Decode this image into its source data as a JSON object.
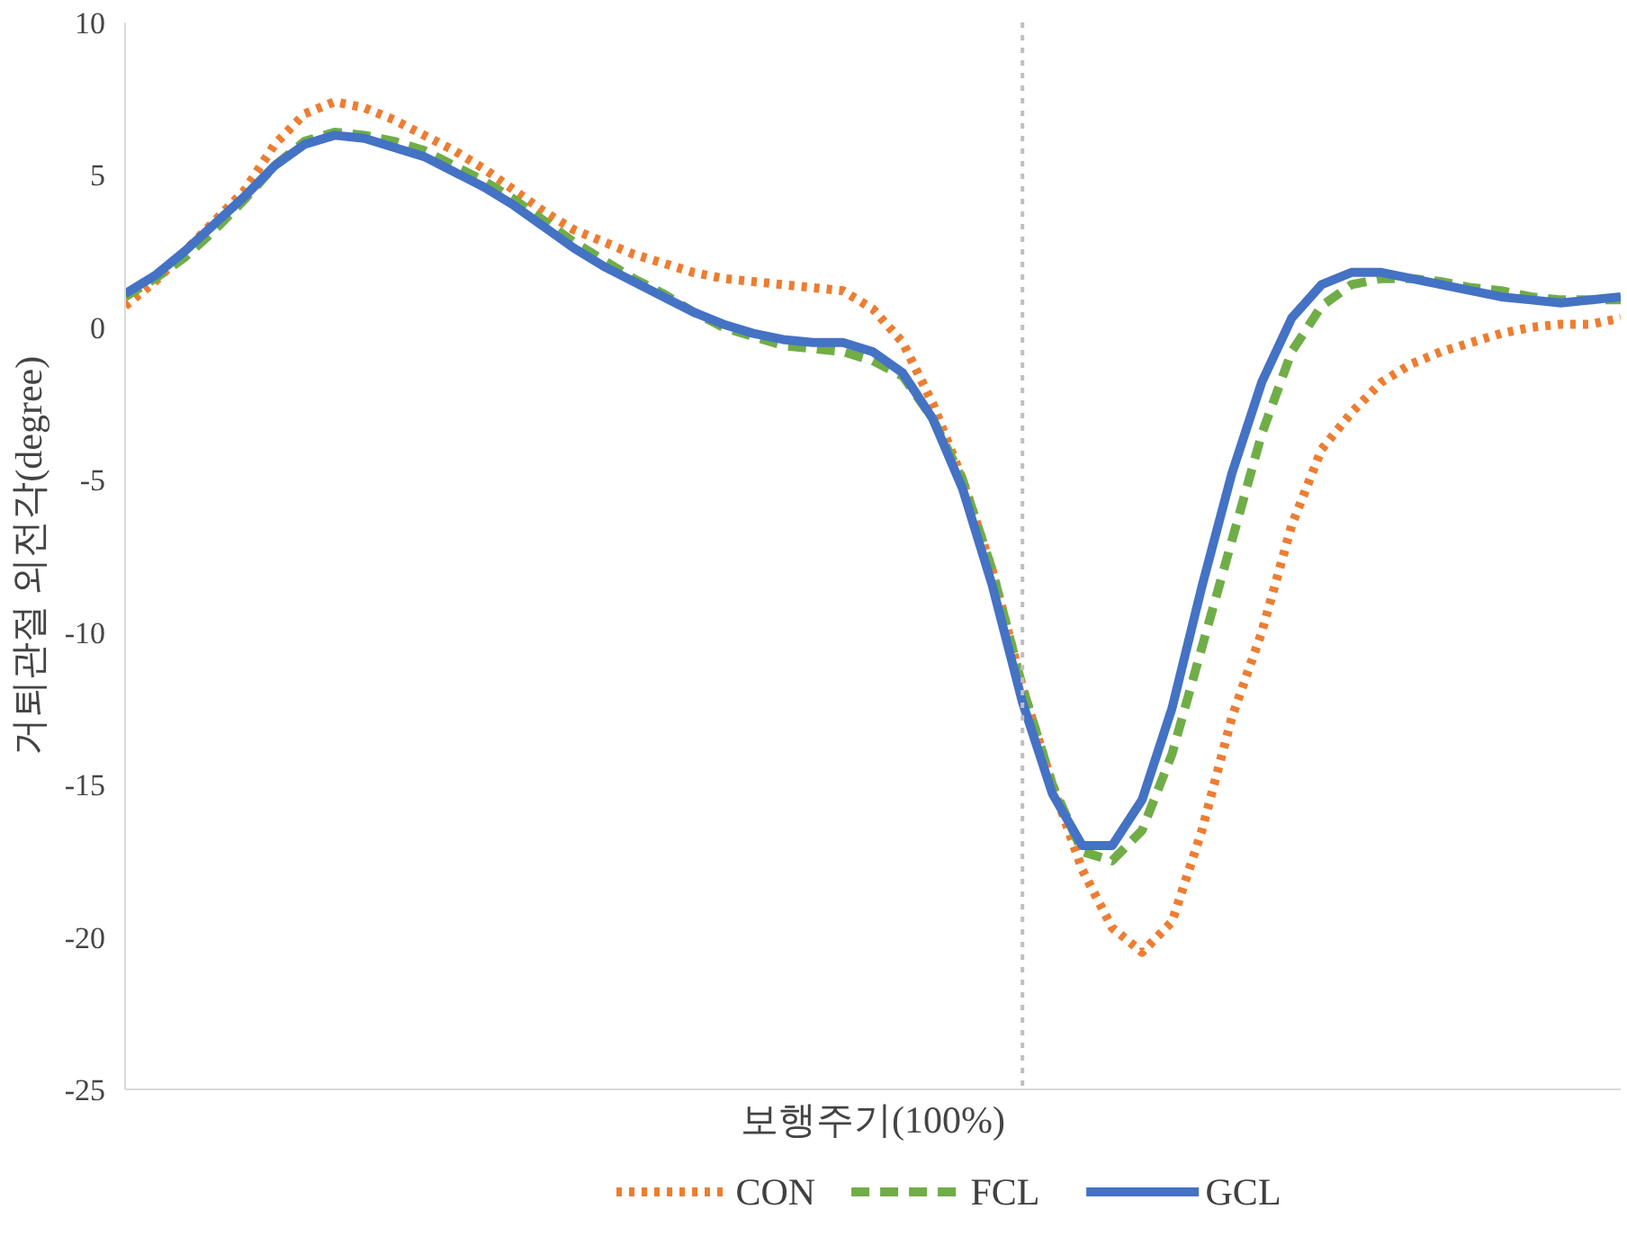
{
  "chart_data": {
    "type": "line",
    "xlabel": "보행주기(100%)",
    "ylabel": "거퇴관절 외전각(degree)",
    "categories": [
      null,
      null,
      null,
      null,
      null,
      null,
      null,
      null,
      null,
      null,
      null,
      null,
      null,
      null,
      null,
      null,
      null,
      null,
      null,
      null,
      null,
      null,
      null,
      null,
      null,
      null,
      null,
      null,
      null,
      null,
      null,
      null,
      null,
      null,
      null,
      null,
      null,
      null,
      null,
      null,
      null,
      null,
      null,
      null,
      null,
      null,
      null,
      null,
      null,
      null,
      null
    ],
    "ylim": [
      -25,
      10
    ],
    "yticks": [
      -25,
      -20,
      -15,
      -10,
      -5,
      0,
      5,
      10
    ],
    "grid": false,
    "legend": "bottom",
    "series": [
      {
        "name": "CON",
        "color": "#ed7d31",
        "line_style": "dotted",
        "values": [
          0.7,
          1.5,
          2.5,
          3.5,
          4.5,
          6.0,
          7.0,
          7.4,
          7.2,
          6.8,
          6.3,
          5.8,
          5.2,
          4.5,
          3.8,
          3.2,
          2.8,
          2.4,
          2.1,
          1.8,
          1.6,
          1.5,
          1.4,
          1.3,
          1.2,
          0.6,
          -0.5,
          -2.5,
          -5.0,
          -8.0,
          -11.8,
          -15.0,
          -17.8,
          -19.7,
          -20.5,
          -19.5,
          -16.5,
          -12.8,
          -10.0,
          -6.5,
          -4.0,
          -2.8,
          -1.8,
          -1.2,
          -0.8,
          -0.5,
          -0.2,
          0.0,
          0.1,
          0.1,
          0.3
        ]
      },
      {
        "name": "FCL",
        "color": "#70ad47",
        "line_style": "dashed",
        "values": [
          1.0,
          1.6,
          2.3,
          3.2,
          4.2,
          5.3,
          6.1,
          6.4,
          6.3,
          6.1,
          5.8,
          5.3,
          4.8,
          4.2,
          3.5,
          2.8,
          2.2,
          1.6,
          1.1,
          0.5,
          0.0,
          -0.3,
          -0.6,
          -0.7,
          -0.8,
          -1.1,
          -1.6,
          -3.0,
          -5.0,
          -8.0,
          -11.8,
          -15.0,
          -17.2,
          -17.5,
          -16.5,
          -14.0,
          -10.5,
          -7.0,
          -3.5,
          -0.8,
          0.7,
          1.4,
          1.6,
          1.6,
          1.5,
          1.3,
          1.2,
          1.0,
          0.9,
          0.9,
          0.9
        ]
      },
      {
        "name": "GCL",
        "color": "#4472c4",
        "line_style": "solid",
        "values": [
          1.1,
          1.7,
          2.5,
          3.4,
          4.3,
          5.3,
          6.0,
          6.3,
          6.2,
          5.9,
          5.6,
          5.1,
          4.6,
          4.0,
          3.3,
          2.6,
          2.0,
          1.5,
          1.0,
          0.5,
          0.1,
          -0.2,
          -0.4,
          -0.5,
          -0.5,
          -0.8,
          -1.5,
          -3.0,
          -5.3,
          -8.5,
          -12.3,
          -15.3,
          -17.0,
          -17.0,
          -15.5,
          -12.5,
          -8.5,
          -4.8,
          -1.8,
          0.3,
          1.4,
          1.8,
          1.8,
          1.6,
          1.4,
          1.2,
          1.0,
          0.9,
          0.8,
          0.9,
          1.0
        ]
      }
    ]
  }
}
